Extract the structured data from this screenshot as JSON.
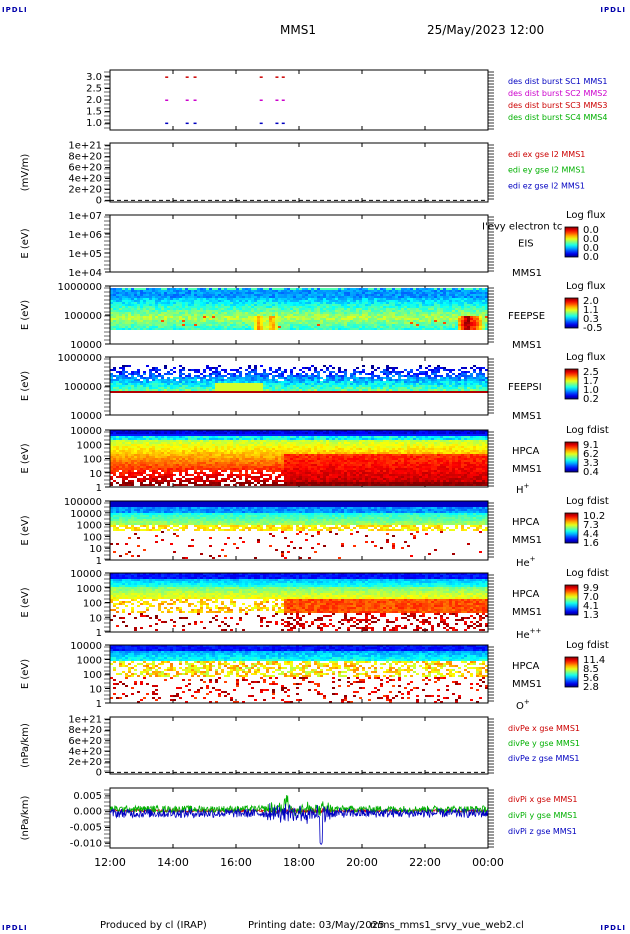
{
  "header": {
    "corner_mark": "IPDLI",
    "title": "MMS1",
    "datetime": "25/May/2023 12:00"
  },
  "footer": {
    "produced_by": "Produced by cl (IRAP)",
    "printing_date": "Printing date: 03/May/2025",
    "filename": "mms_mms1_srvy_vue_web2.cl"
  },
  "colors": {
    "red": "#cc0000",
    "green": "#00b000",
    "blue": "#0000c0",
    "magenta": "#cc00cc",
    "gray": "#888888"
  },
  "time_axis": {
    "labels": [
      "12:00",
      "14:00",
      "16:00",
      "18:00",
      "20:00",
      "22:00",
      "00:00"
    ],
    "hours": [
      12,
      14,
      16,
      18,
      20,
      22,
      24
    ]
  },
  "chart_data": [
    {
      "type": "scatter",
      "panel": "burst",
      "ylim": [
        0.7,
        3.3
      ],
      "yticks": [
        "3.0",
        "2.5",
        "2.0",
        "1.5",
        "1.0"
      ],
      "ytick_values": [
        3.0,
        2.5,
        2.0,
        1.5,
        1.0
      ],
      "ylabel": "",
      "legend": [
        {
          "text": "des dist burst SC1 MMS1",
          "color": "#0000c0"
        },
        {
          "text": "des dist burst SC2 MMS2",
          "color": "#cc00cc"
        },
        {
          "text": "des dist burst SC3 MMS3",
          "color": "#cc0000"
        },
        {
          "text": "des dist burst SC4 MMS4",
          "color": "#00b000"
        }
      ],
      "series": [
        {
          "name": "des dist burst SC1 MMS1",
          "y": 1.0,
          "color": "#0000c0",
          "times": [
            13.8,
            14.45,
            14.7,
            16.8,
            17.3,
            17.5
          ]
        },
        {
          "name": "des dist burst SC2 MMS2",
          "y": 2.0,
          "color": "#cc00cc",
          "times": [
            13.8,
            14.45,
            14.7,
            16.8,
            17.3,
            17.5
          ]
        },
        {
          "name": "des dist burst SC3 MMS3",
          "y": 3.0,
          "color": "#cc0000",
          "times": [
            13.8,
            14.45,
            14.7,
            16.8,
            17.3,
            17.5
          ]
        }
      ]
    },
    {
      "type": "line",
      "panel": "edi",
      "ylabel": "(mV/m)",
      "yticks": [
        "1e+21",
        "8e+20",
        "6e+20",
        "4e+20",
        "2e+20",
        "0"
      ],
      "ytick_values": [
        1e+21,
        8e+20,
        6e+20,
        4e+20,
        2e+20,
        0
      ],
      "ylim": [
        -3e+19,
        1.05e+21
      ],
      "zero_line": true,
      "legend": [
        {
          "text": "edi ex gse l2 MMS1",
          "color": "#cc0000"
        },
        {
          "text": "edi ey gse l2 MMS1",
          "color": "#00b000"
        },
        {
          "text": "edi ez gse l2 MMS1",
          "color": "#0000c0"
        }
      ]
    },
    {
      "type": "heatmap",
      "panel": "eis",
      "ylabel": "E (eV)",
      "yticks": [
        "1e+07",
        "1e+06",
        "1e+05",
        "1e+04"
      ],
      "ylog_range": [
        4,
        7
      ],
      "instrument": [
        "EIS",
        "MMS1"
      ],
      "overlay_text": "I'evy electron tc",
      "cbar_title": "Log flux",
      "cbar_ticks": [
        "0.0",
        "0.0",
        "0.0",
        "0.0"
      ],
      "empty": true
    },
    {
      "type": "heatmap",
      "panel": "feepse",
      "ylabel": "E (eV)",
      "yticks": [
        "1000000",
        "100000",
        "10000"
      ],
      "ylog_range": [
        4,
        6
      ],
      "instrument": [
        "FEEPSE",
        "MMS1"
      ],
      "cbar_title": "Log flux",
      "cbar_ticks": [
        "2.0",
        "1.1",
        "0.3",
        "-0.5"
      ],
      "band_low": 4.5,
      "band_high": 5.9,
      "peak_log": 4.9,
      "hot_events": [
        {
          "t": 16.75,
          "level": 0.75
        },
        {
          "t": 17.15,
          "level": 0.75
        },
        {
          "t": 23.35,
          "level": 1.0
        },
        {
          "t": 23.6,
          "level": 0.85
        }
      ]
    },
    {
      "type": "heatmap",
      "panel": "feepsi",
      "ylabel": "E (eV)",
      "yticks": [
        "1000000",
        "100000",
        "10000"
      ],
      "ylog_range": [
        4,
        6
      ],
      "instrument": [
        "FEEPSI",
        "MMS1"
      ],
      "cbar_title": "Log flux",
      "cbar_ticks": [
        "2.5",
        "1.7",
        "1.0",
        "0.2"
      ],
      "band_low": 4.78,
      "band_high": 5.75,
      "peak_log": 4.82
    },
    {
      "type": "heatmap",
      "panel": "hpca_h",
      "ylabel": "E (eV)",
      "yticks": [
        "10000",
        "1000",
        "100",
        "10",
        "1"
      ],
      "ylog_range": [
        0,
        4.3
      ],
      "instrument": [
        "HPCA",
        "MMS1",
        "H"
      ],
      "species_sup": "+",
      "cbar_title": "Log fdist",
      "cbar_ticks": [
        "9.1",
        "6.2",
        "3.3",
        "0.4"
      ]
    },
    {
      "type": "heatmap",
      "panel": "hpca_he",
      "ylabel": "E (eV)",
      "yticks": [
        "100000",
        "10000",
        "1000",
        "100",
        "10",
        "1"
      ],
      "ylog_range": [
        0,
        5
      ],
      "instrument": [
        "HPCA",
        "MMS1",
        "He"
      ],
      "species_sup": "+",
      "cbar_title": "Log fdist",
      "cbar_ticks": [
        "10.2",
        "7.3",
        "4.4",
        "1.6"
      ]
    },
    {
      "type": "heatmap",
      "panel": "hpca_hepp",
      "ylabel": "E (eV)",
      "yticks": [
        "10000",
        "1000",
        "100",
        "10",
        "1"
      ],
      "ylog_range": [
        0,
        4.3
      ],
      "instrument": [
        "HPCA",
        "MMS1",
        "He"
      ],
      "species_sup": "++",
      "cbar_title": "Log fdist",
      "cbar_ticks": [
        "9.9",
        "7.0",
        "4.1",
        "1.3"
      ]
    },
    {
      "type": "heatmap",
      "panel": "hpca_o",
      "ylabel": "E (eV)",
      "yticks": [
        "10000",
        "1000",
        "100",
        "10",
        "1"
      ],
      "ylog_range": [
        0,
        4.3
      ],
      "instrument": [
        "HPCA",
        "MMS1",
        "O"
      ],
      "species_sup": "+",
      "cbar_title": "Log fdist",
      "cbar_ticks": [
        "11.4",
        "8.5",
        "5.6",
        "2.8"
      ]
    },
    {
      "type": "line",
      "panel": "divpe",
      "ylabel": "(nPa/km)",
      "yticks": [
        "1e+21",
        "8e+20",
        "6e+20",
        "4e+20",
        "2e+20",
        "0"
      ],
      "ytick_values": [
        1e+21,
        8e+20,
        6e+20,
        4e+20,
        2e+20,
        0
      ],
      "ylim": [
        -3e+19,
        1.05e+21
      ],
      "zero_line": true,
      "legend": [
        {
          "text": "divPe x gse MMS1",
          "color": "#cc0000"
        },
        {
          "text": "divPe y gse MMS1",
          "color": "#00b000"
        },
        {
          "text": "divPe z gse MMS1",
          "color": "#0000c0"
        }
      ]
    },
    {
      "type": "line",
      "panel": "divpi",
      "ylabel": "(nPa/km)",
      "yticks": [
        "0.005",
        "0.000",
        "-0.005",
        "-0.010"
      ],
      "ytick_values": [
        0.005,
        0.0,
        -0.005,
        -0.01
      ],
      "ylim": [
        -0.0115,
        0.0075
      ],
      "legend": [
        {
          "text": "divPi x gse MMS1",
          "color": "#cc0000"
        },
        {
          "text": "divPi y gse MMS1",
          "color": "#00b000"
        },
        {
          "text": "divPi z gse MMS1",
          "color": "#0000c0"
        }
      ],
      "series": [
        {
          "name": "divPi x gse MMS1",
          "color": "#cc0000",
          "base": 0.0003,
          "noise": 0.0004
        },
        {
          "name": "divPi y gse MMS1",
          "color": "#00b000",
          "base": 0.0008,
          "noise": 0.0011
        },
        {
          "name": "divPi z gse MMS1",
          "color": "#0000c0",
          "base": -0.0005,
          "noise": 0.0014,
          "dip_time": 18.7,
          "dip_value": -0.0105
        }
      ]
    }
  ]
}
